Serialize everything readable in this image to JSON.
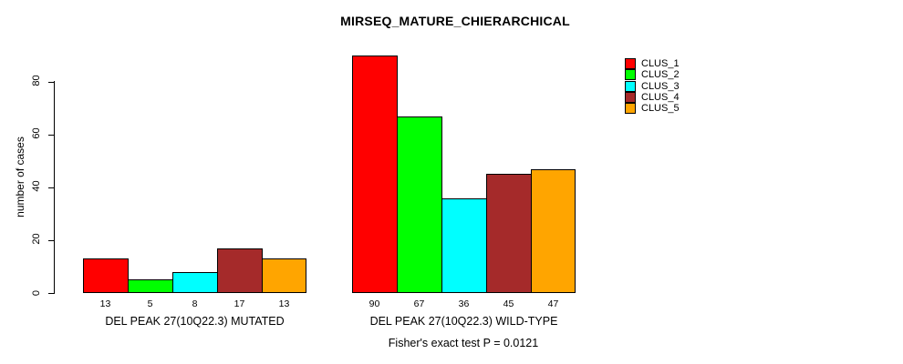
{
  "chart_data": {
    "type": "bar",
    "title": "MIRSEQ_MATURE_CHIERARCHICAL",
    "xlabel": "",
    "ylabel": "number of cases",
    "ylim": [
      0,
      90
    ],
    "yticks": [
      0,
      20,
      40,
      60,
      80
    ],
    "grid": false,
    "legend_position": "top-right",
    "categories": [
      "DEL PEAK 27(10Q22.3) MUTATED",
      "DEL PEAK 27(10Q22.3) WILD-TYPE"
    ],
    "series": [
      {
        "name": "CLUS_1",
        "color": "#FF0000",
        "values": [
          13,
          90
        ]
      },
      {
        "name": "CLUS_2",
        "color": "#00FF00",
        "values": [
          5,
          67
        ]
      },
      {
        "name": "CLUS_3",
        "color": "#00FFFF",
        "values": [
          8,
          36
        ]
      },
      {
        "name": "CLUS_4",
        "color": "#A52A2A",
        "values": [
          17,
          45
        ]
      },
      {
        "name": "CLUS_5",
        "color": "#FFA500",
        "values": [
          13,
          47
        ]
      }
    ],
    "bar_value_labels": {
      "DEL PEAK 27(10Q22.3) MUTATED": [
        13,
        5,
        8,
        17,
        13
      ],
      "DEL PEAK 27(10Q22.3) WILD-TYPE": [
        90,
        67,
        36,
        45,
        47
      ]
    },
    "annotation": "Fisher's exact test P = 0.0121",
    "bar_border_color": "#000000",
    "background_color": "#FFFFFF"
  }
}
